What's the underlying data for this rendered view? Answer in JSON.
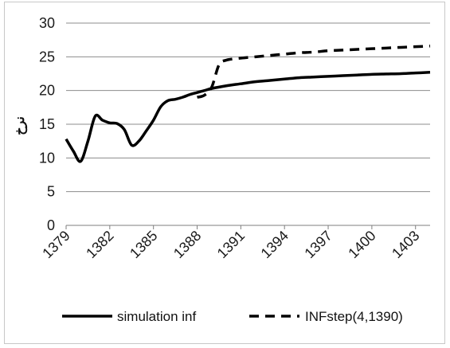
{
  "chart_data": {
    "type": "line",
    "title": "",
    "xlabel": "",
    "ylabel": "نرخ",
    "ylim": [
      0,
      30
    ],
    "yticks": [
      0,
      5,
      10,
      15,
      20,
      25,
      30
    ],
    "xlim": [
      1379,
      1404
    ],
    "xticks": [
      1379,
      1382,
      1385,
      1388,
      1391,
      1394,
      1397,
      1400,
      1403
    ],
    "grid": true,
    "legend_position": "bottom",
    "series": [
      {
        "name": "simulation inf",
        "style": "solid",
        "color": "#000000",
        "x": [
          1379,
          1379.5,
          1380,
          1380.5,
          1381,
          1381.5,
          1382,
          1382.5,
          1383,
          1383.5,
          1384,
          1384.5,
          1385,
          1385.5,
          1386,
          1386.5,
          1387,
          1387.5,
          1388,
          1388.5,
          1389,
          1390,
          1391,
          1392,
          1393,
          1394,
          1395,
          1396,
          1397,
          1398,
          1399,
          1400,
          1401,
          1402,
          1403,
          1404
        ],
        "y": [
          12.8,
          11.0,
          9.5,
          12.5,
          16.2,
          15.6,
          15.2,
          15.1,
          14.2,
          11.9,
          12.5,
          14.0,
          15.6,
          17.6,
          18.5,
          18.7,
          19.0,
          19.4,
          19.7,
          20.0,
          20.3,
          20.7,
          21.0,
          21.3,
          21.5,
          21.7,
          21.9,
          22.0,
          22.1,
          22.2,
          22.3,
          22.4,
          22.45,
          22.5,
          22.6,
          22.7
        ]
      },
      {
        "name": "INFstep(4,1390)",
        "style": "dashed",
        "color": "#000000",
        "x": [
          1388,
          1388.5,
          1389,
          1389.5,
          1390,
          1391,
          1392,
          1393,
          1394,
          1395,
          1396,
          1397,
          1398,
          1399,
          1400,
          1401,
          1402,
          1403,
          1404
        ],
        "y": [
          19.0,
          19.3,
          20.5,
          23.8,
          24.5,
          24.8,
          25.0,
          25.2,
          25.4,
          25.6,
          25.7,
          25.9,
          26.0,
          26.1,
          26.2,
          26.3,
          26.4,
          26.5,
          26.6
        ]
      }
    ]
  }
}
